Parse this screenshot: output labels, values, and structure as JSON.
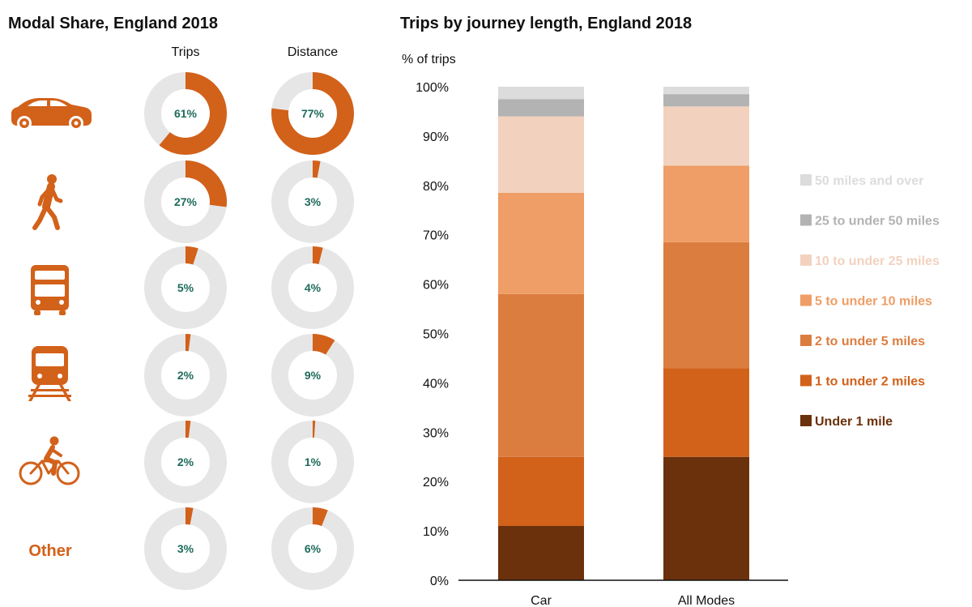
{
  "colors": {
    "accent": "#d2611a",
    "donut_track": "#e6e6e6",
    "donut_label": "#1e6b5a",
    "series": [
      "#6b310c",
      "#d2611a",
      "#dc7d40",
      "#ee9e66",
      "#f2d2be",
      "#b3b3b3",
      "#dcdcdc"
    ]
  },
  "chart_data": [
    {
      "type": "pie",
      "variant": "donut-grid",
      "title": "Modal Share, England 2018",
      "columns": [
        "Trips",
        "Distance"
      ],
      "rows": [
        {
          "mode_icon": "car-icon",
          "trips": 61,
          "distance": 77,
          "trips_label": "61%",
          "distance_label": "77%"
        },
        {
          "mode_icon": "walking-person-icon",
          "trips": 27,
          "distance": 3,
          "trips_label": "27%",
          "distance_label": "3%"
        },
        {
          "mode_icon": "bus-icon",
          "trips": 5,
          "distance": 4,
          "trips_label": "5%",
          "distance_label": "4%"
        },
        {
          "mode_icon": "train-icon",
          "trips": 2,
          "distance": 9,
          "trips_label": "2%",
          "distance_label": "9%"
        },
        {
          "mode_icon": "cyclist-icon",
          "trips": 2,
          "distance": 1,
          "trips_label": "2%",
          "distance_label": "1%"
        },
        {
          "mode_text": "Other",
          "trips": 3,
          "distance": 6,
          "trips_label": "3%",
          "distance_label": "6%"
        }
      ]
    },
    {
      "type": "bar",
      "stacked": true,
      "title": "Trips by journey length, England 2018",
      "ylabel": "% of trips",
      "ylim": [
        0,
        100
      ],
      "yticks": [
        "0%",
        "10%",
        "20%",
        "30%",
        "40%",
        "50%",
        "60%",
        "70%",
        "80%",
        "90%",
        "100%"
      ],
      "categories": [
        "Car",
        "All Modes"
      ],
      "legend_position": "right",
      "series": [
        {
          "name": "Under 1 mile",
          "values": [
            11,
            25
          ]
        },
        {
          "name": "1 to under 2 miles",
          "values": [
            14,
            18
          ]
        },
        {
          "name": "2 to under 5 miles",
          "values": [
            33,
            25.5
          ]
        },
        {
          "name": "5 to under 10 miles",
          "values": [
            20.5,
            15.5
          ]
        },
        {
          "name": "10 to under 25 miles",
          "values": [
            15.5,
            12
          ]
        },
        {
          "name": "25 to under 50 miles",
          "values": [
            3.5,
            2.5
          ]
        },
        {
          "name": "50 miles and over",
          "values": [
            2.5,
            1.5
          ]
        }
      ]
    }
  ]
}
